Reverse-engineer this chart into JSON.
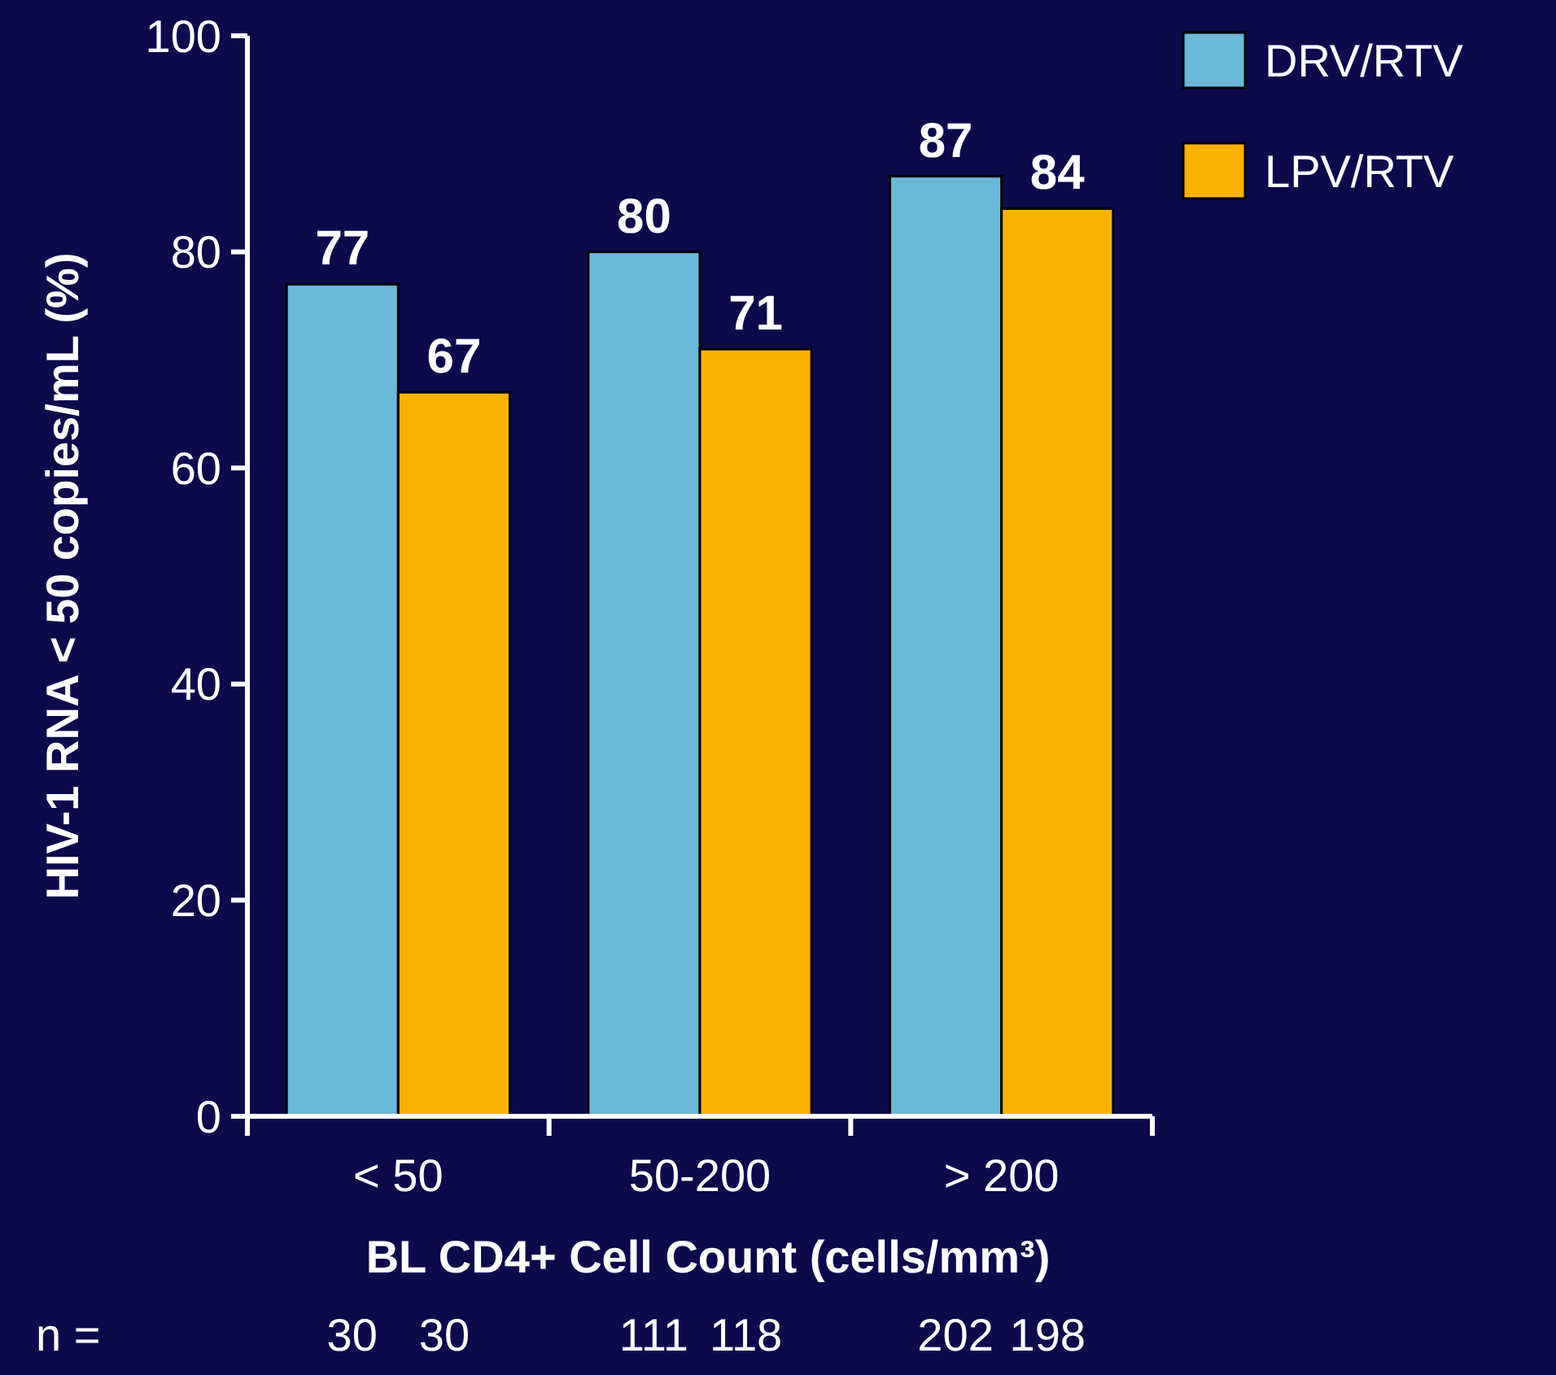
{
  "chart_data": {
    "type": "bar",
    "xlabel": "BL CD4+ Cell Count (cells/mm³)",
    "ylabel": "HIV-1 RNA < 50 copies/mL (%)",
    "categories": [
      "< 50",
      "50-200",
      "> 200"
    ],
    "series": [
      {
        "name": "DRV/RTV",
        "color": "#6bb8d8",
        "values": [
          77,
          80,
          87
        ]
      },
      {
        "name": "LPV/RTV",
        "color": "#f9b100",
        "values": [
          67,
          71,
          84
        ]
      }
    ],
    "ylim": [
      0,
      100
    ],
    "yticks": [
      0,
      20,
      40,
      60,
      80,
      100
    ],
    "grid": false,
    "legend": "top right",
    "data_labels": true,
    "annotations": [
      "n =",
      "30",
      "30",
      "111",
      "118",
      "202",
      "198"
    ]
  }
}
